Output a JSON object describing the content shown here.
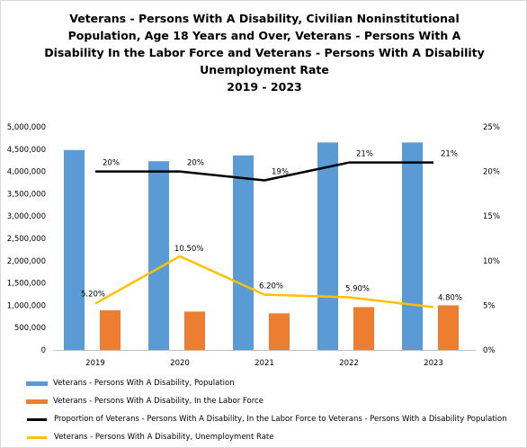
{
  "chart_data": {
    "type": "bar",
    "title_lines": [
      "Veterans - Persons With A Disability, Civilian Noninstitutional",
      "Population, Age 18 Years and Over, Veterans - Persons With A",
      "Disability In the Labor Force and Veterans - Persons With A Disability",
      "Unemployment Rate",
      "2019 - 2023"
    ],
    "categories": [
      "2019",
      "2020",
      "2021",
      "2022",
      "2023"
    ],
    "y_left": {
      "ylim": [
        0,
        5000000
      ],
      "ticks": [
        0,
        500000,
        1000000,
        1500000,
        2000000,
        2500000,
        3000000,
        3500000,
        4000000,
        4500000,
        5000000
      ],
      "tick_labels": [
        "0",
        "500,000",
        "1,000,000",
        "1,500,000",
        "2,000,000",
        "2,500,000",
        "3,000,000",
        "3,500,000",
        "4,000,000",
        "4,500,000",
        "5,000,000"
      ]
    },
    "y_right": {
      "ylim": [
        0,
        0.25
      ],
      "ticks": [
        0,
        0.05,
        0.1,
        0.15,
        0.2,
        0.25
      ],
      "tick_labels": [
        "0%",
        "5%",
        "10%",
        "15%",
        "20%",
        "25%"
      ]
    },
    "series": [
      {
        "name": "Veterans - Persons With A Disability, Population",
        "type": "bar",
        "axis": "left",
        "color": "#5b9bd5",
        "values": [
          4480000,
          4230000,
          4360000,
          4650000,
          4650000
        ]
      },
      {
        "name": "Veterans - Persons With A Disability, In the Labor Force",
        "type": "bar",
        "axis": "left",
        "color": "#ed7d31",
        "values": [
          890000,
          860000,
          820000,
          960000,
          1000000
        ]
      },
      {
        "name": "Proportion of Veterans - Persons With A Disability, In the Labor Force to Veterans - Persons With a Disability Population",
        "type": "line",
        "axis": "right",
        "color": "#000000",
        "values": [
          0.2,
          0.2,
          0.19,
          0.21,
          0.21
        ],
        "data_labels": [
          "20%",
          "20%",
          "19%",
          "21%",
          "21%"
        ]
      },
      {
        "name": "Veterans - Persons With A Disability, Unemployment Rate",
        "type": "line",
        "axis": "right",
        "color": "#ffc000",
        "values": [
          0.052,
          0.105,
          0.062,
          0.059,
          0.048
        ],
        "data_labels": [
          "5.20%",
          "10.50%",
          "6.20%",
          "5.90%",
          "4.80%"
        ]
      }
    ],
    "grid": false,
    "legend_position": "bottom"
  }
}
